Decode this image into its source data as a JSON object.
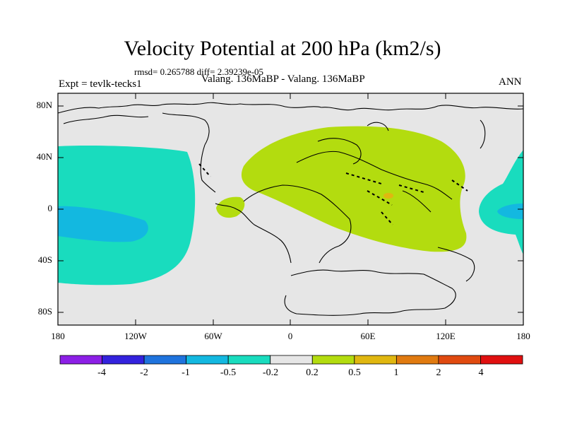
{
  "title": "Velocity Potential at 200 hPa (km2/s)",
  "stats": "rmsd= 0.265788 diff= 2.39239e-05",
  "experiment": "Expt = tevlk-tecks1",
  "subtitle": "Valang. 136MaBP - Valang. 136MaBP",
  "season": "ANN",
  "y_axis_labels": [
    "80N",
    "40N",
    "0",
    "40S",
    "80S"
  ],
  "x_axis_labels": [
    "180",
    "120W",
    "60W",
    "0",
    "60E",
    "120E",
    "180"
  ],
  "colorbar": {
    "labels": [
      "-4",
      "-2",
      "-1",
      "-0.5",
      "-0.2",
      "0.2",
      "0.5",
      "1",
      "2",
      "4"
    ],
    "colors": [
      "#8c1fe6",
      "#3322dd",
      "#1f73dd",
      "#13b8e0",
      "#19dcbe",
      "#e6e6e6",
      "#b3dc0f",
      "#e0b710",
      "#e07a10",
      "#e04a10",
      "#e01010"
    ]
  },
  "fields": {
    "background_color": "#e6e6e6",
    "positive_anomaly_color": "#b3dc0f",
    "negative_anomaly_color": "#19dcbe",
    "negative_core_color": "#13b8e0",
    "positive_core_color": "#e0b710"
  }
}
